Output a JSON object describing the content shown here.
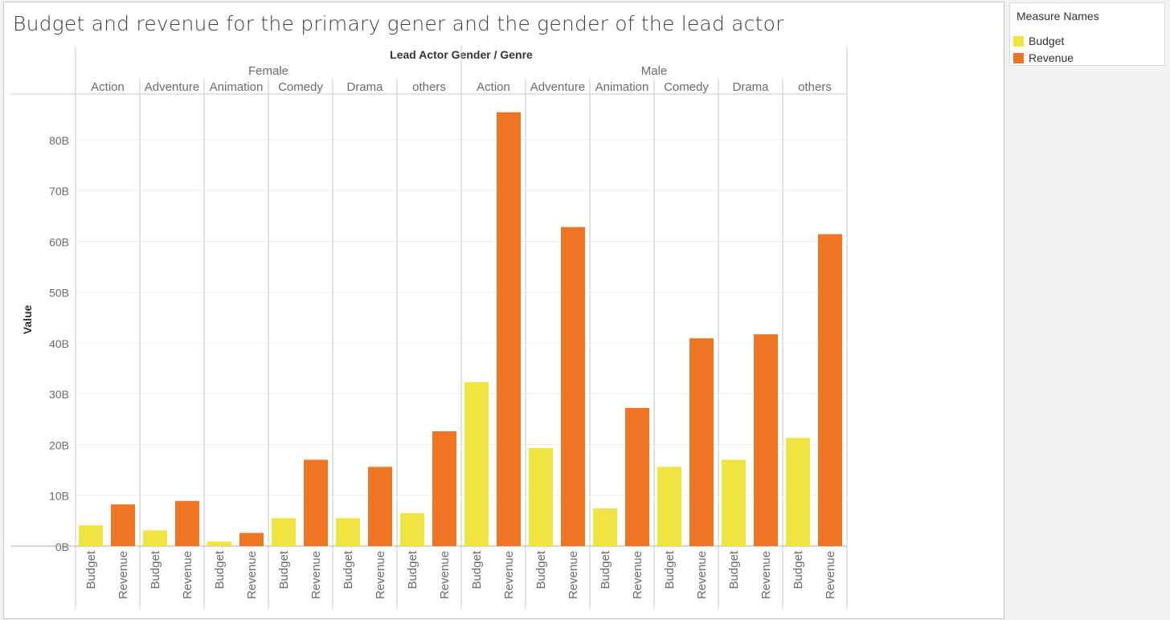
{
  "title": "Budget and revenue for the primary gener and the gender of the lead actor",
  "legend": {
    "title": "Measure Names",
    "items": [
      {
        "label": "Budget",
        "color": "#f0e442"
      },
      {
        "label": "Revenue",
        "color": "#ee7523"
      }
    ]
  },
  "chart_data": {
    "type": "bar",
    "column_header": "Lead Actor Gender  /  Genre",
    "ylabel": "Value",
    "ylim": [
      0,
      89
    ],
    "y_unit": "B",
    "y_ticks": [
      "0B",
      "10B",
      "20B",
      "30B",
      "40B",
      "50B",
      "60B",
      "70B",
      "80B"
    ],
    "measures": [
      "Budget",
      "Revenue"
    ],
    "colors": {
      "Budget": "#f0e442",
      "Revenue": "#ee7523"
    },
    "groups": [
      {
        "gender": "Female",
        "genres": [
          {
            "genre": "Action",
            "Budget": 4.1,
            "Revenue": 8.2
          },
          {
            "genre": "Adventure",
            "Budget": 3.1,
            "Revenue": 8.9
          },
          {
            "genre": "Animation",
            "Budget": 0.9,
            "Revenue": 2.6
          },
          {
            "genre": "Comedy",
            "Budget": 5.5,
            "Revenue": 17.0
          },
          {
            "genre": "Drama",
            "Budget": 5.5,
            "Revenue": 15.6
          },
          {
            "genre": "others",
            "Budget": 6.5,
            "Revenue": 22.6
          }
        ]
      },
      {
        "gender": "Male",
        "genres": [
          {
            "genre": "Action",
            "Budget": 32.3,
            "Revenue": 85.4
          },
          {
            "genre": "Adventure",
            "Budget": 19.3,
            "Revenue": 62.8
          },
          {
            "genre": "Animation",
            "Budget": 7.4,
            "Revenue": 27.2
          },
          {
            "genre": "Comedy",
            "Budget": 15.6,
            "Revenue": 40.9
          },
          {
            "genre": "Drama",
            "Budget": 17.0,
            "Revenue": 41.7
          },
          {
            "genre": "others",
            "Budget": 21.3,
            "Revenue": 61.4
          }
        ]
      }
    ]
  }
}
